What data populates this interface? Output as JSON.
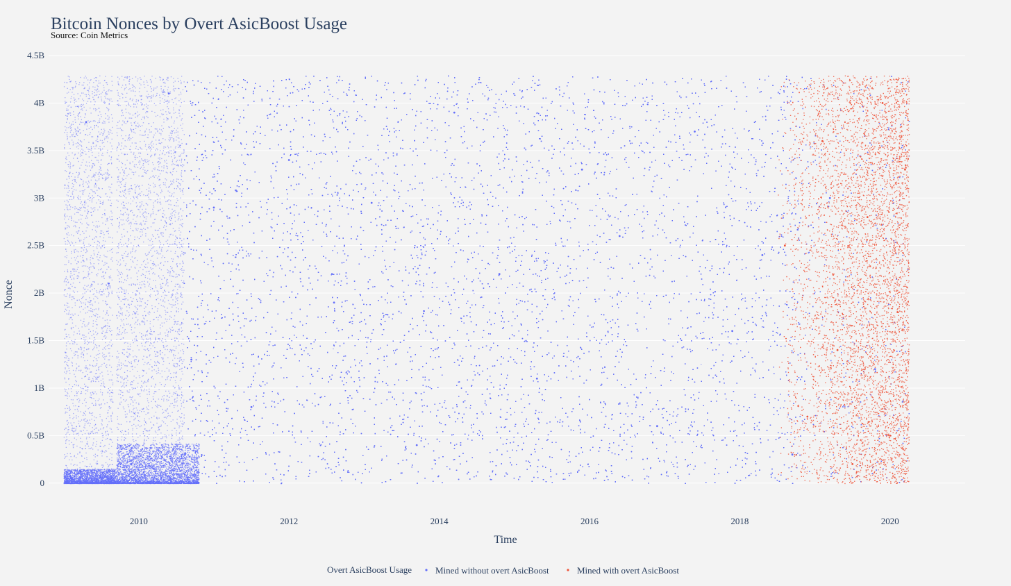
{
  "chart_data": {
    "type": "scatter",
    "title": "Bitcoin Nonces by Overt AsicBoost Usage",
    "subtitle": "Source: Coin Metrics",
    "xlabel": "Time",
    "ylabel": "Nonce",
    "xlim": [
      2008.8,
      2021.0
    ],
    "ylim": [
      -0.25,
      4.5
    ],
    "y_unit": "B",
    "x_ticks": [
      2010,
      2012,
      2014,
      2016,
      2018,
      2020
    ],
    "x_tick_labels": [
      "2010",
      "2012",
      "2014",
      "2016",
      "2018",
      "2020"
    ],
    "y_ticks": [
      0,
      0.5,
      1,
      1.5,
      2,
      2.5,
      3,
      3.5,
      4,
      4.5
    ],
    "y_tick_labels": [
      "0",
      "0.5B",
      "1B",
      "1.5B",
      "2B",
      "2.5B",
      "3B",
      "3.5B",
      "4B",
      "4.5B"
    ],
    "grid": true,
    "legend": {
      "title": "Overt AsicBoost Usage",
      "position": "bottom-center",
      "orientation": "horizontal"
    },
    "series": [
      {
        "name": "Mined without overt AsicBoost",
        "color": "#636efa",
        "x_range": [
          2009.0,
          2020.25
        ],
        "y_range": [
          0,
          4.29
        ],
        "points": [
          [
            2009.1,
            0.05
          ],
          [
            2009.3,
            3.8
          ],
          [
            2009.6,
            2.1
          ],
          [
            2009.9,
            0.2
          ],
          [
            2010.2,
            0.15
          ],
          [
            2010.4,
            4.1
          ],
          [
            2010.7,
            1.3
          ],
          [
            2011.0,
            2.9
          ],
          [
            2011.5,
            0.8
          ],
          [
            2012.0,
            3.4
          ],
          [
            2012.6,
            1.9
          ],
          [
            2013.1,
            2.95
          ],
          [
            2013.7,
            0.4
          ],
          [
            2014.2,
            3.9
          ],
          [
            2014.8,
            2.2
          ],
          [
            2015.3,
            1.1
          ],
          [
            2015.9,
            3.3
          ],
          [
            2016.4,
            2.6
          ],
          [
            2016.9,
            0.6
          ],
          [
            2017.4,
            3.7
          ],
          [
            2017.9,
            1.6
          ],
          [
            2018.3,
            2.4
          ],
          [
            2018.7,
            0.3
          ],
          [
            2019.2,
            3.0
          ],
          [
            2019.8,
            1.2
          ]
        ]
      },
      {
        "name": "Mined with overt AsicBoost",
        "color": "#ef553b",
        "x_range": [
          2018.5,
          2020.25
        ],
        "y_range": [
          0,
          4.29
        ],
        "points": [
          [
            2018.6,
            2.5
          ],
          [
            2018.9,
            0.7
          ],
          [
            2019.1,
            3.6
          ],
          [
            2019.3,
            1.4
          ],
          [
            2019.5,
            0.2
          ],
          [
            2019.7,
            2.8
          ],
          [
            2019.9,
            4.0
          ],
          [
            2020.0,
            0.5
          ],
          [
            2020.1,
            1.8
          ],
          [
            2020.2,
            3.3
          ]
        ]
      }
    ]
  }
}
